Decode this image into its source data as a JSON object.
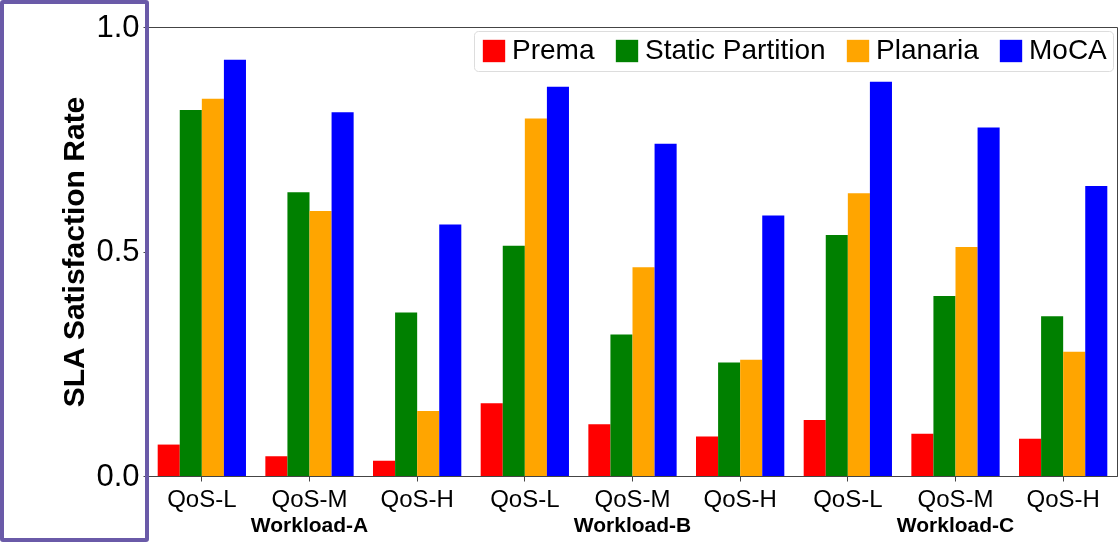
{
  "chart_data": {
    "type": "bar",
    "ylabel": "SLA Satisfaction Rate",
    "categories": [
      "QoS-L",
      "QoS-M",
      "QoS-H",
      "QoS-L",
      "QoS-M",
      "QoS-H",
      "QoS-L",
      "QoS-M",
      "QoS-H"
    ],
    "series": [
      {
        "name": "Prema",
        "color": "#ff0000",
        "values": [
          0.07,
          0.044,
          0.034,
          0.162,
          0.115,
          0.088,
          0.125,
          0.094,
          0.083
        ]
      },
      {
        "name": "Static Partition",
        "color": "#008000",
        "values": [
          0.815,
          0.632,
          0.364,
          0.513,
          0.315,
          0.253,
          0.537,
          0.401,
          0.356
        ]
      },
      {
        "name": "Planaria",
        "color": "#ffa500",
        "values": [
          0.84,
          0.59,
          0.145,
          0.796,
          0.465,
          0.259,
          0.63,
          0.51,
          0.277
        ]
      },
      {
        "name": "MoCA",
        "color": "#0000ff",
        "values": [
          0.927,
          0.81,
          0.56,
          0.867,
          0.74,
          0.58,
          0.878,
          0.776,
          0.646
        ]
      }
    ],
    "annotations": [
      "Workload-A",
      "Workload-B",
      "Workload-C"
    ],
    "ylim": [
      0,
      1.0
    ],
    "yticks": [
      {
        "value": 0,
        "label": "0.0"
      },
      {
        "value": 0.5,
        "label": "0.5"
      },
      {
        "value": 1.0,
        "label": "1.0"
      }
    ],
    "grid": false,
    "legend": "top right"
  }
}
